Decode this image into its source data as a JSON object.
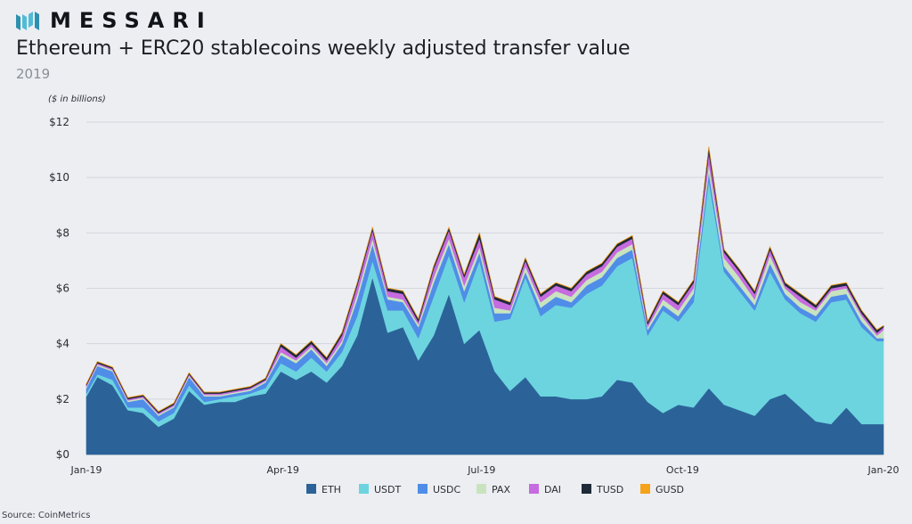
{
  "header": {
    "logo_text": "MESSARI",
    "title": "Ethereum + ERC20 stablecoins weekly adjusted transfer value",
    "subtitle": "2019",
    "unit_note": "($ in billions)"
  },
  "footer": {
    "source": "Source: CoinMetrics"
  },
  "chart_data": {
    "type": "area",
    "stacked": true,
    "ylim": [
      0,
      12
    ],
    "y_ticks": [
      0,
      2,
      4,
      6,
      8,
      10,
      12
    ],
    "y_tick_labels": [
      "$0",
      "$2",
      "$4",
      "$6",
      "$8",
      "$10",
      "$12"
    ],
    "x_range": [
      "2019-01-01",
      "2020-01-01"
    ],
    "x_ticks": [
      "2019-01-01",
      "2019-04-01",
      "2019-07-01",
      "2019-10-01",
      "2020-01-01"
    ],
    "x_tick_labels": [
      "Jan-19",
      "Apr-19",
      "Jul-19",
      "Oct-19",
      "Jan-20"
    ],
    "grid": true,
    "legend_position": "bottom",
    "x": [
      "2019-01-01",
      "2019-01-06",
      "2019-01-13",
      "2019-01-20",
      "2019-01-27",
      "2019-02-03",
      "2019-02-10",
      "2019-02-17",
      "2019-02-24",
      "2019-03-03",
      "2019-03-10",
      "2019-03-17",
      "2019-03-24",
      "2019-03-31",
      "2019-04-07",
      "2019-04-14",
      "2019-04-21",
      "2019-04-28",
      "2019-05-05",
      "2019-05-12",
      "2019-05-19",
      "2019-05-26",
      "2019-06-02",
      "2019-06-09",
      "2019-06-16",
      "2019-06-23",
      "2019-06-30",
      "2019-07-07",
      "2019-07-14",
      "2019-07-21",
      "2019-07-28",
      "2019-08-04",
      "2019-08-11",
      "2019-08-18",
      "2019-08-25",
      "2019-09-01",
      "2019-09-08",
      "2019-09-15",
      "2019-09-22",
      "2019-09-29",
      "2019-10-06",
      "2019-10-13",
      "2019-10-20",
      "2019-10-27",
      "2019-11-03",
      "2019-11-10",
      "2019-11-17",
      "2019-11-24",
      "2019-12-01",
      "2019-12-08",
      "2019-12-15",
      "2019-12-22",
      "2019-12-29",
      "2020-01-01"
    ],
    "series": [
      {
        "name": "ETH",
        "color": "#2b6398",
        "values": [
          2.1,
          2.8,
          2.5,
          1.6,
          1.5,
          1.0,
          1.3,
          2.3,
          1.8,
          1.9,
          1.9,
          2.1,
          2.2,
          3.0,
          2.7,
          3.0,
          2.6,
          3.2,
          4.3,
          6.4,
          4.4,
          4.6,
          3.4,
          4.3,
          5.8,
          4.0,
          4.5,
          3.0,
          2.3,
          2.8,
          2.1,
          2.1,
          2.0,
          2.0,
          2.1,
          2.7,
          2.6,
          1.9,
          1.5,
          1.8,
          1.7,
          2.4,
          1.8,
          1.6,
          1.4,
          2.0,
          2.2,
          1.7,
          1.2,
          1.1,
          1.7,
          1.1,
          1.1,
          1.1
        ]
      },
      {
        "name": "USDT",
        "color": "#6cd4df",
        "values": [
          0.1,
          0.1,
          0.2,
          0.1,
          0.2,
          0.2,
          0.2,
          0.2,
          0.1,
          0.1,
          0.2,
          0.1,
          0.2,
          0.3,
          0.3,
          0.5,
          0.4,
          0.5,
          0.7,
          0.6,
          0.8,
          0.6,
          0.8,
          1.4,
          1.4,
          1.5,
          2.5,
          1.8,
          2.6,
          3.6,
          2.9,
          3.3,
          3.3,
          3.8,
          4.0,
          4.1,
          4.5,
          2.4,
          3.7,
          3.0,
          3.8,
          7.5,
          4.8,
          4.3,
          3.8,
          4.6,
          3.4,
          3.4,
          3.6,
          4.4,
          3.9,
          3.5,
          3.0,
          3.0
        ]
      },
      {
        "name": "USDC",
        "color": "#4f8de8",
        "values": [
          0.2,
          0.3,
          0.3,
          0.2,
          0.3,
          0.2,
          0.2,
          0.3,
          0.2,
          0.1,
          0.1,
          0.1,
          0.2,
          0.3,
          0.3,
          0.3,
          0.2,
          0.3,
          0.6,
          0.6,
          0.4,
          0.3,
          0.4,
          0.5,
          0.4,
          0.4,
          0.3,
          0.3,
          0.2,
          0.2,
          0.3,
          0.3,
          0.2,
          0.3,
          0.3,
          0.3,
          0.3,
          0.2,
          0.2,
          0.2,
          0.3,
          0.3,
          0.2,
          0.2,
          0.2,
          0.3,
          0.2,
          0.2,
          0.2,
          0.2,
          0.2,
          0.2,
          0.1,
          0.1
        ]
      },
      {
        "name": "PAX",
        "color": "#c9e3bf",
        "values": [
          0.05,
          0.05,
          0.05,
          0.05,
          0.05,
          0.05,
          0.05,
          0.05,
          0.05,
          0.05,
          0.05,
          0.05,
          0.05,
          0.1,
          0.1,
          0.1,
          0.1,
          0.1,
          0.2,
          0.2,
          0.1,
          0.1,
          0.1,
          0.2,
          0.2,
          0.2,
          0.2,
          0.2,
          0.1,
          0.2,
          0.2,
          0.2,
          0.2,
          0.2,
          0.2,
          0.2,
          0.2,
          0.1,
          0.2,
          0.2,
          0.2,
          0.3,
          0.3,
          0.3,
          0.2,
          0.3,
          0.2,
          0.2,
          0.2,
          0.2,
          0.2,
          0.2,
          0.1,
          0.3
        ]
      },
      {
        "name": "DAI",
        "color": "#c76be0",
        "values": [
          0.05,
          0.05,
          0.05,
          0.05,
          0.05,
          0.05,
          0.05,
          0.05,
          0.05,
          0.05,
          0.05,
          0.05,
          0.05,
          0.2,
          0.1,
          0.1,
          0.1,
          0.2,
          0.3,
          0.3,
          0.2,
          0.2,
          0.1,
          0.3,
          0.3,
          0.3,
          0.3,
          0.3,
          0.2,
          0.2,
          0.2,
          0.2,
          0.2,
          0.2,
          0.2,
          0.2,
          0.2,
          0.1,
          0.2,
          0.2,
          0.2,
          0.4,
          0.2,
          0.2,
          0.2,
          0.2,
          0.1,
          0.2,
          0.1,
          0.1,
          0.1,
          0.1,
          0.1,
          0.1
        ]
      },
      {
        "name": "TUSD",
        "color": "#1e2a38",
        "values": [
          0.05,
          0.05,
          0.05,
          0.05,
          0.05,
          0.05,
          0.05,
          0.05,
          0.05,
          0.05,
          0.05,
          0.05,
          0.05,
          0.1,
          0.1,
          0.1,
          0.1,
          0.1,
          0.1,
          0.1,
          0.1,
          0.1,
          0.1,
          0.1,
          0.1,
          0.1,
          0.2,
          0.1,
          0.1,
          0.1,
          0.1,
          0.1,
          0.1,
          0.1,
          0.1,
          0.1,
          0.1,
          0.1,
          0.1,
          0.1,
          0.1,
          0.2,
          0.1,
          0.1,
          0.1,
          0.1,
          0.1,
          0.1,
          0.1,
          0.1,
          0.1,
          0.1,
          0.1,
          0.05
        ]
      },
      {
        "name": "GUSD",
        "color": "#f7a21b",
        "values": [
          0.01,
          0.01,
          0.01,
          0.01,
          0.01,
          0.01,
          0.01,
          0.01,
          0.01,
          0.01,
          0.01,
          0.01,
          0.01,
          0.01,
          0.01,
          0.01,
          0.01,
          0.01,
          0.01,
          0.01,
          0.01,
          0.01,
          0.01,
          0.01,
          0.01,
          0.01,
          0.01,
          0.01,
          0.01,
          0.01,
          0.01,
          0.01,
          0.01,
          0.01,
          0.01,
          0.01,
          0.01,
          0.01,
          0.01,
          0.01,
          0.01,
          0.01,
          0.01,
          0.01,
          0.01,
          0.01,
          0.01,
          0.01,
          0.01,
          0.01,
          0.01,
          0.01,
          0.01,
          0.01
        ]
      }
    ]
  }
}
